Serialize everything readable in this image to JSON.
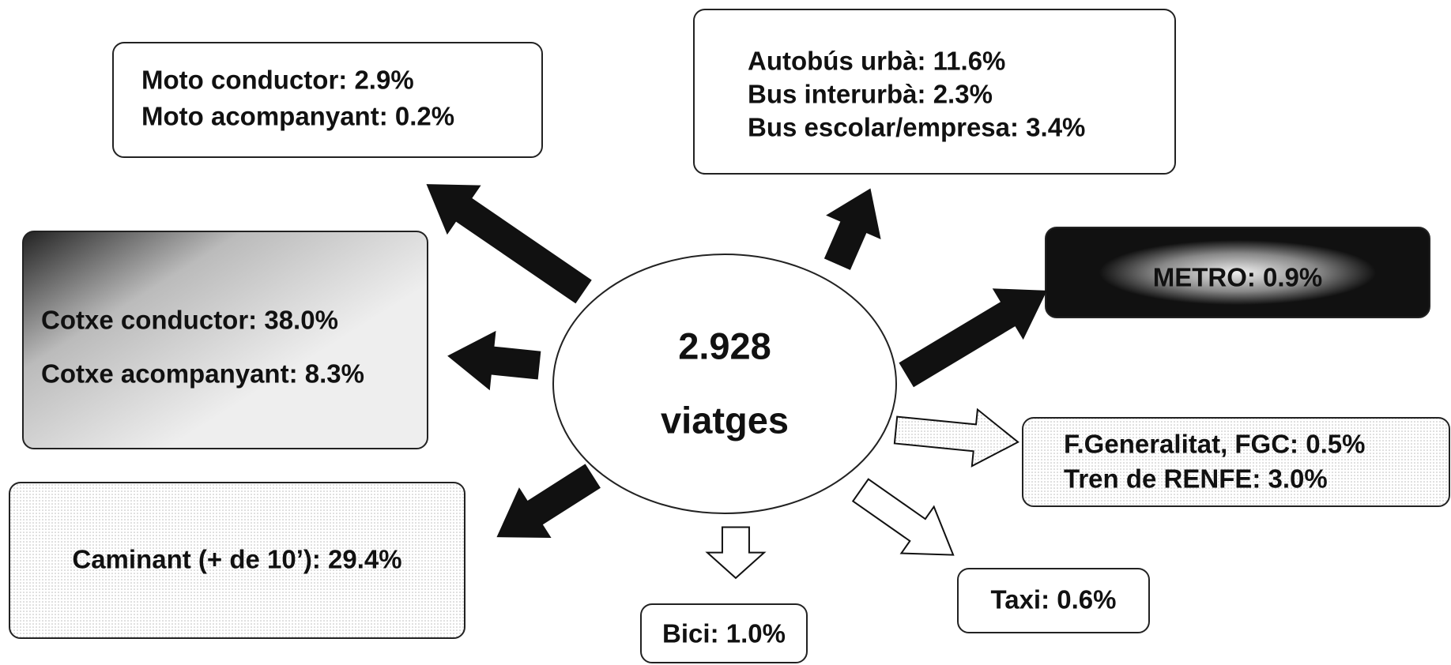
{
  "center": {
    "lines": [
      "2.928",
      "viatges"
    ]
  },
  "nodes": [
    {
      "lines": [
        "Moto conductor: 2.9%",
        "Moto acompanyant: 0.2%"
      ]
    },
    {
      "lines": [
        "Autobús urbà: 11.6%",
        "Bus interurbà: 2.3%",
        "Bus escolar/empresa: 3.4%"
      ]
    },
    {
      "lines": [
        "METRO: 0.9%"
      ]
    },
    {
      "lines": [
        "Cotxe conductor: 38.0%",
        "Cotxe acompanyant: 8.3%"
      ]
    },
    {
      "lines": [
        "F.Generalitat, FGC: 0.5%",
        "Tren de RENFE: 3.0%"
      ]
    },
    {
      "lines": [
        "Caminant (+ de 10’): 29.4%"
      ]
    },
    {
      "lines": [
        "Bici: 1.0%"
      ]
    },
    {
      "lines": [
        "Taxi: 0.6%"
      ]
    }
  ]
}
